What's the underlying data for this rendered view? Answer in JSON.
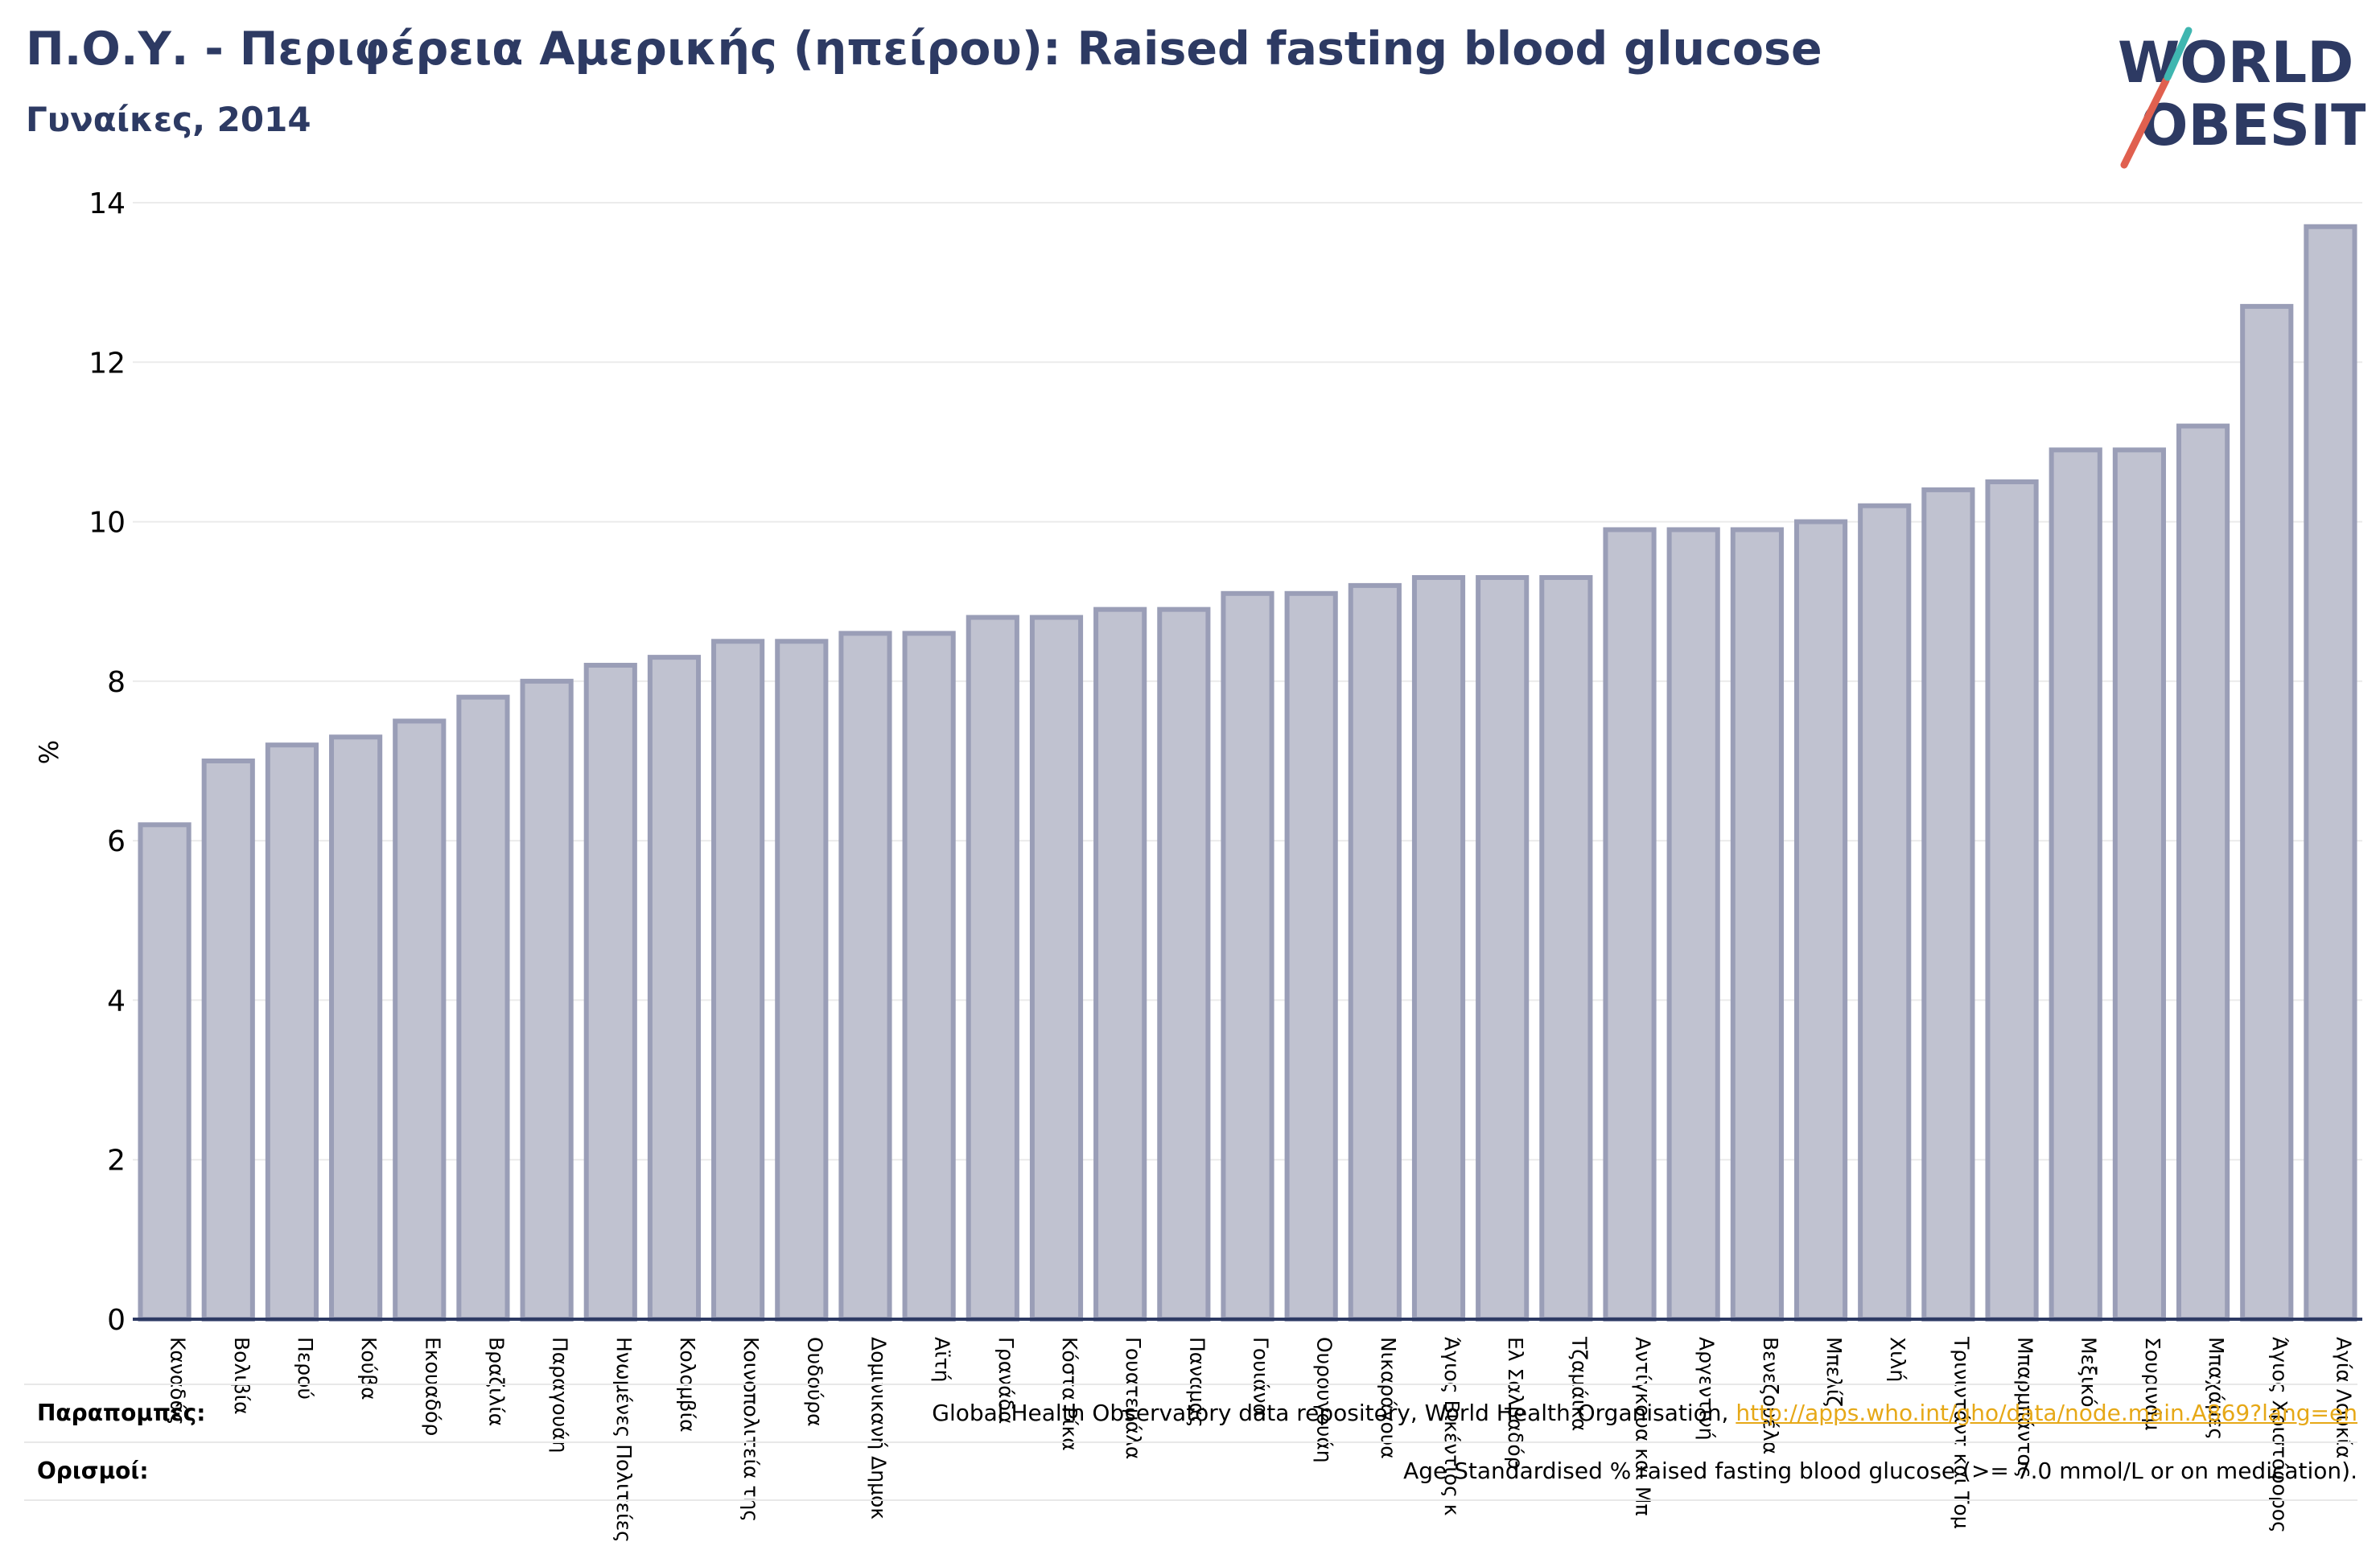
{
  "header": {
    "title": "Π.Ο.Υ. - Περιφέρεια Αμερικής (ηπείρου): Raised fasting blood glucose",
    "subtitle": "Γυναίκες, 2014"
  },
  "logo": {
    "line1": "WORLD",
    "line2": "OBESITY"
  },
  "colors": {
    "title": "#2d3a63",
    "bar_fill": "#c0c2d0",
    "bar_stroke": "#9a9eb7",
    "axis": "#2d3a63",
    "grid": "#ebebeb",
    "link": "#e6a817",
    "logo_teal": "#3fb6b0",
    "logo_red": "#e0604f"
  },
  "chart_data": {
    "type": "bar",
    "ylabel": "%",
    "ylim": [
      0,
      14
    ],
    "yticks": [
      0,
      2,
      4,
      6,
      8,
      10,
      12,
      14
    ],
    "grid": true,
    "categories": [
      "Καναδάς",
      "Βολιβία",
      "Περού",
      "Κούβα",
      "Εκουαδόρ",
      "Βραζιλία",
      "Παραγουάη",
      "Ηνωμένες Πολιτείες",
      "Κολομβία",
      "Κοινοπολιτεία της",
      "Ουδούρα",
      "Δομινικανή Δημοκ",
      "Αϊτή",
      "Γρανάδα",
      "Κόστα Ρίκα",
      "Γουατεμάλα",
      "Παναμάς",
      "Γουιάνα",
      "Ουρουγουάη",
      "Νικαράγουα",
      "Άγιος Βικέντιος κ",
      "Ελ Σαλβαδόρ",
      "Τζαμάικα",
      "Αντίγκουα και Μπ",
      "Αργεντινή",
      "Βενεζουέλα",
      "Μπελίζ",
      "Χιλή",
      "Τρινιντάντ και Τομ",
      "Μπαρμπάντος",
      "Μεξικό",
      "Σουρινάμ",
      "Μπαχάμες",
      "Άγιος Χριστόφορος",
      "Αγία Λουκία"
    ],
    "values": [
      6.2,
      7.0,
      7.2,
      7.3,
      7.5,
      7.8,
      8.0,
      8.2,
      8.3,
      8.5,
      8.5,
      8.6,
      8.6,
      8.8,
      8.8,
      8.9,
      8.9,
      9.1,
      9.1,
      9.2,
      9.3,
      9.3,
      9.3,
      9.9,
      9.9,
      9.9,
      10.0,
      10.2,
      10.4,
      10.5,
      10.9,
      10.9,
      11.2,
      12.7,
      13.7
    ]
  },
  "notes": {
    "sources_label": "Παραπομπές:",
    "sources_text": "Global Health Observatory data repository, World Health Organisation, ",
    "sources_link": "http://apps.who.int/gho/data/node.main.A869?lang=en",
    "definitions_label": "Ορισμοί:",
    "definitions_text": "Age Standardised % raised fasting blood glucose (>= 7.0 mmol/L or on medication)."
  }
}
